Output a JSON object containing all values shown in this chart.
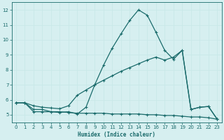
{
  "xlabel": "Humidex (Indice chaleur)",
  "background_color": "#d6eff0",
  "grid_color": "#c8e8e8",
  "line_color": "#1a6b6b",
  "xlim": [
    -0.5,
    23.5
  ],
  "ylim": [
    4.5,
    12.5
  ],
  "xticks": [
    0,
    1,
    2,
    3,
    4,
    5,
    6,
    7,
    8,
    9,
    10,
    11,
    12,
    13,
    14,
    15,
    16,
    17,
    18,
    19,
    20,
    21,
    22,
    23
  ],
  "yticks": [
    5,
    6,
    7,
    8,
    9,
    10,
    11,
    12
  ],
  "series1_x": [
    0,
    1,
    2,
    3,
    4,
    5,
    6,
    7,
    8,
    9,
    10,
    11,
    12,
    13,
    14,
    15,
    16,
    17,
    18,
    19,
    20,
    21,
    22,
    23
  ],
  "series1_y": [
    5.8,
    5.8,
    5.35,
    5.35,
    5.2,
    5.15,
    5.2,
    5.05,
    5.5,
    7.0,
    8.3,
    9.45,
    10.4,
    11.3,
    12.0,
    11.65,
    10.5,
    9.3,
    8.7,
    9.3,
    5.35,
    5.5,
    5.55,
    4.7
  ],
  "series2_x": [
    0,
    1,
    2,
    3,
    4,
    5,
    6,
    7,
    8,
    9,
    10,
    11,
    12,
    13,
    14,
    15,
    16,
    17,
    18,
    19,
    20,
    21,
    22,
    23
  ],
  "series2_y": [
    5.8,
    5.8,
    5.6,
    5.5,
    5.45,
    5.4,
    5.6,
    6.3,
    6.65,
    7.0,
    7.3,
    7.6,
    7.9,
    8.15,
    8.4,
    8.65,
    8.85,
    8.65,
    8.85,
    9.3,
    5.35,
    5.5,
    5.55,
    4.7
  ],
  "series3_x": [
    0,
    1,
    2,
    3,
    4,
    5,
    6,
    7,
    8,
    9,
    10,
    11,
    12,
    13,
    14,
    15,
    16,
    17,
    18,
    19,
    20,
    21,
    22,
    23
  ],
  "series3_y": [
    5.8,
    5.8,
    5.2,
    5.2,
    5.2,
    5.2,
    5.15,
    5.1,
    5.1,
    5.1,
    5.1,
    5.05,
    5.05,
    5.05,
    5.05,
    5.0,
    5.0,
    4.95,
    4.95,
    4.9,
    4.85,
    4.85,
    4.8,
    4.7
  ]
}
